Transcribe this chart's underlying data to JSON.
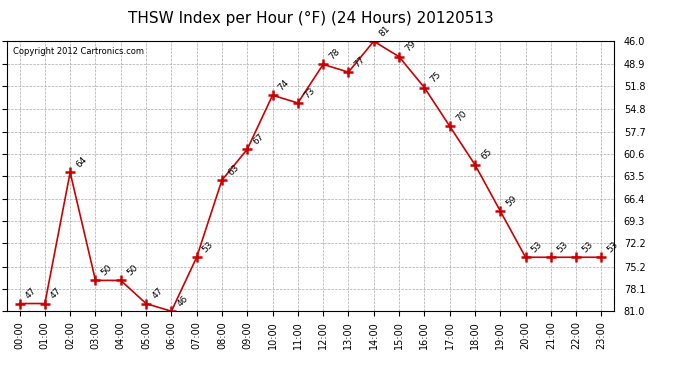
{
  "title": "THSW Index per Hour (°F) (24 Hours) 20120513",
  "copyright": "Copyright 2012 Cartronics.com",
  "hours": [
    "00:00",
    "01:00",
    "02:00",
    "03:00",
    "04:00",
    "05:00",
    "06:00",
    "07:00",
    "08:00",
    "09:00",
    "10:00",
    "11:00",
    "12:00",
    "13:00",
    "14:00",
    "15:00",
    "16:00",
    "17:00",
    "18:00",
    "19:00",
    "20:00",
    "21:00",
    "22:00",
    "23:00"
  ],
  "values": [
    47,
    47,
    64,
    50,
    50,
    47,
    46,
    53,
    63,
    67,
    74,
    73,
    78,
    77,
    81,
    79,
    75,
    70,
    65,
    59,
    53,
    53,
    53,
    53
  ],
  "line_color": "#cc0000",
  "marker": "+",
  "marker_color": "#cc0000",
  "bg_color": "#ffffff",
  "grid_color": "#aaaaaa",
  "ymin": 46.0,
  "ymax": 81.0,
  "yticks": [
    46.0,
    48.9,
    51.8,
    54.8,
    57.7,
    60.6,
    63.5,
    66.4,
    69.3,
    72.2,
    75.2,
    78.1,
    81.0
  ],
  "title_fontsize": 11,
  "label_fontsize": 7,
  "annotation_fontsize": 6.5,
  "figwidth": 6.9,
  "figheight": 3.75,
  "dpi": 100
}
